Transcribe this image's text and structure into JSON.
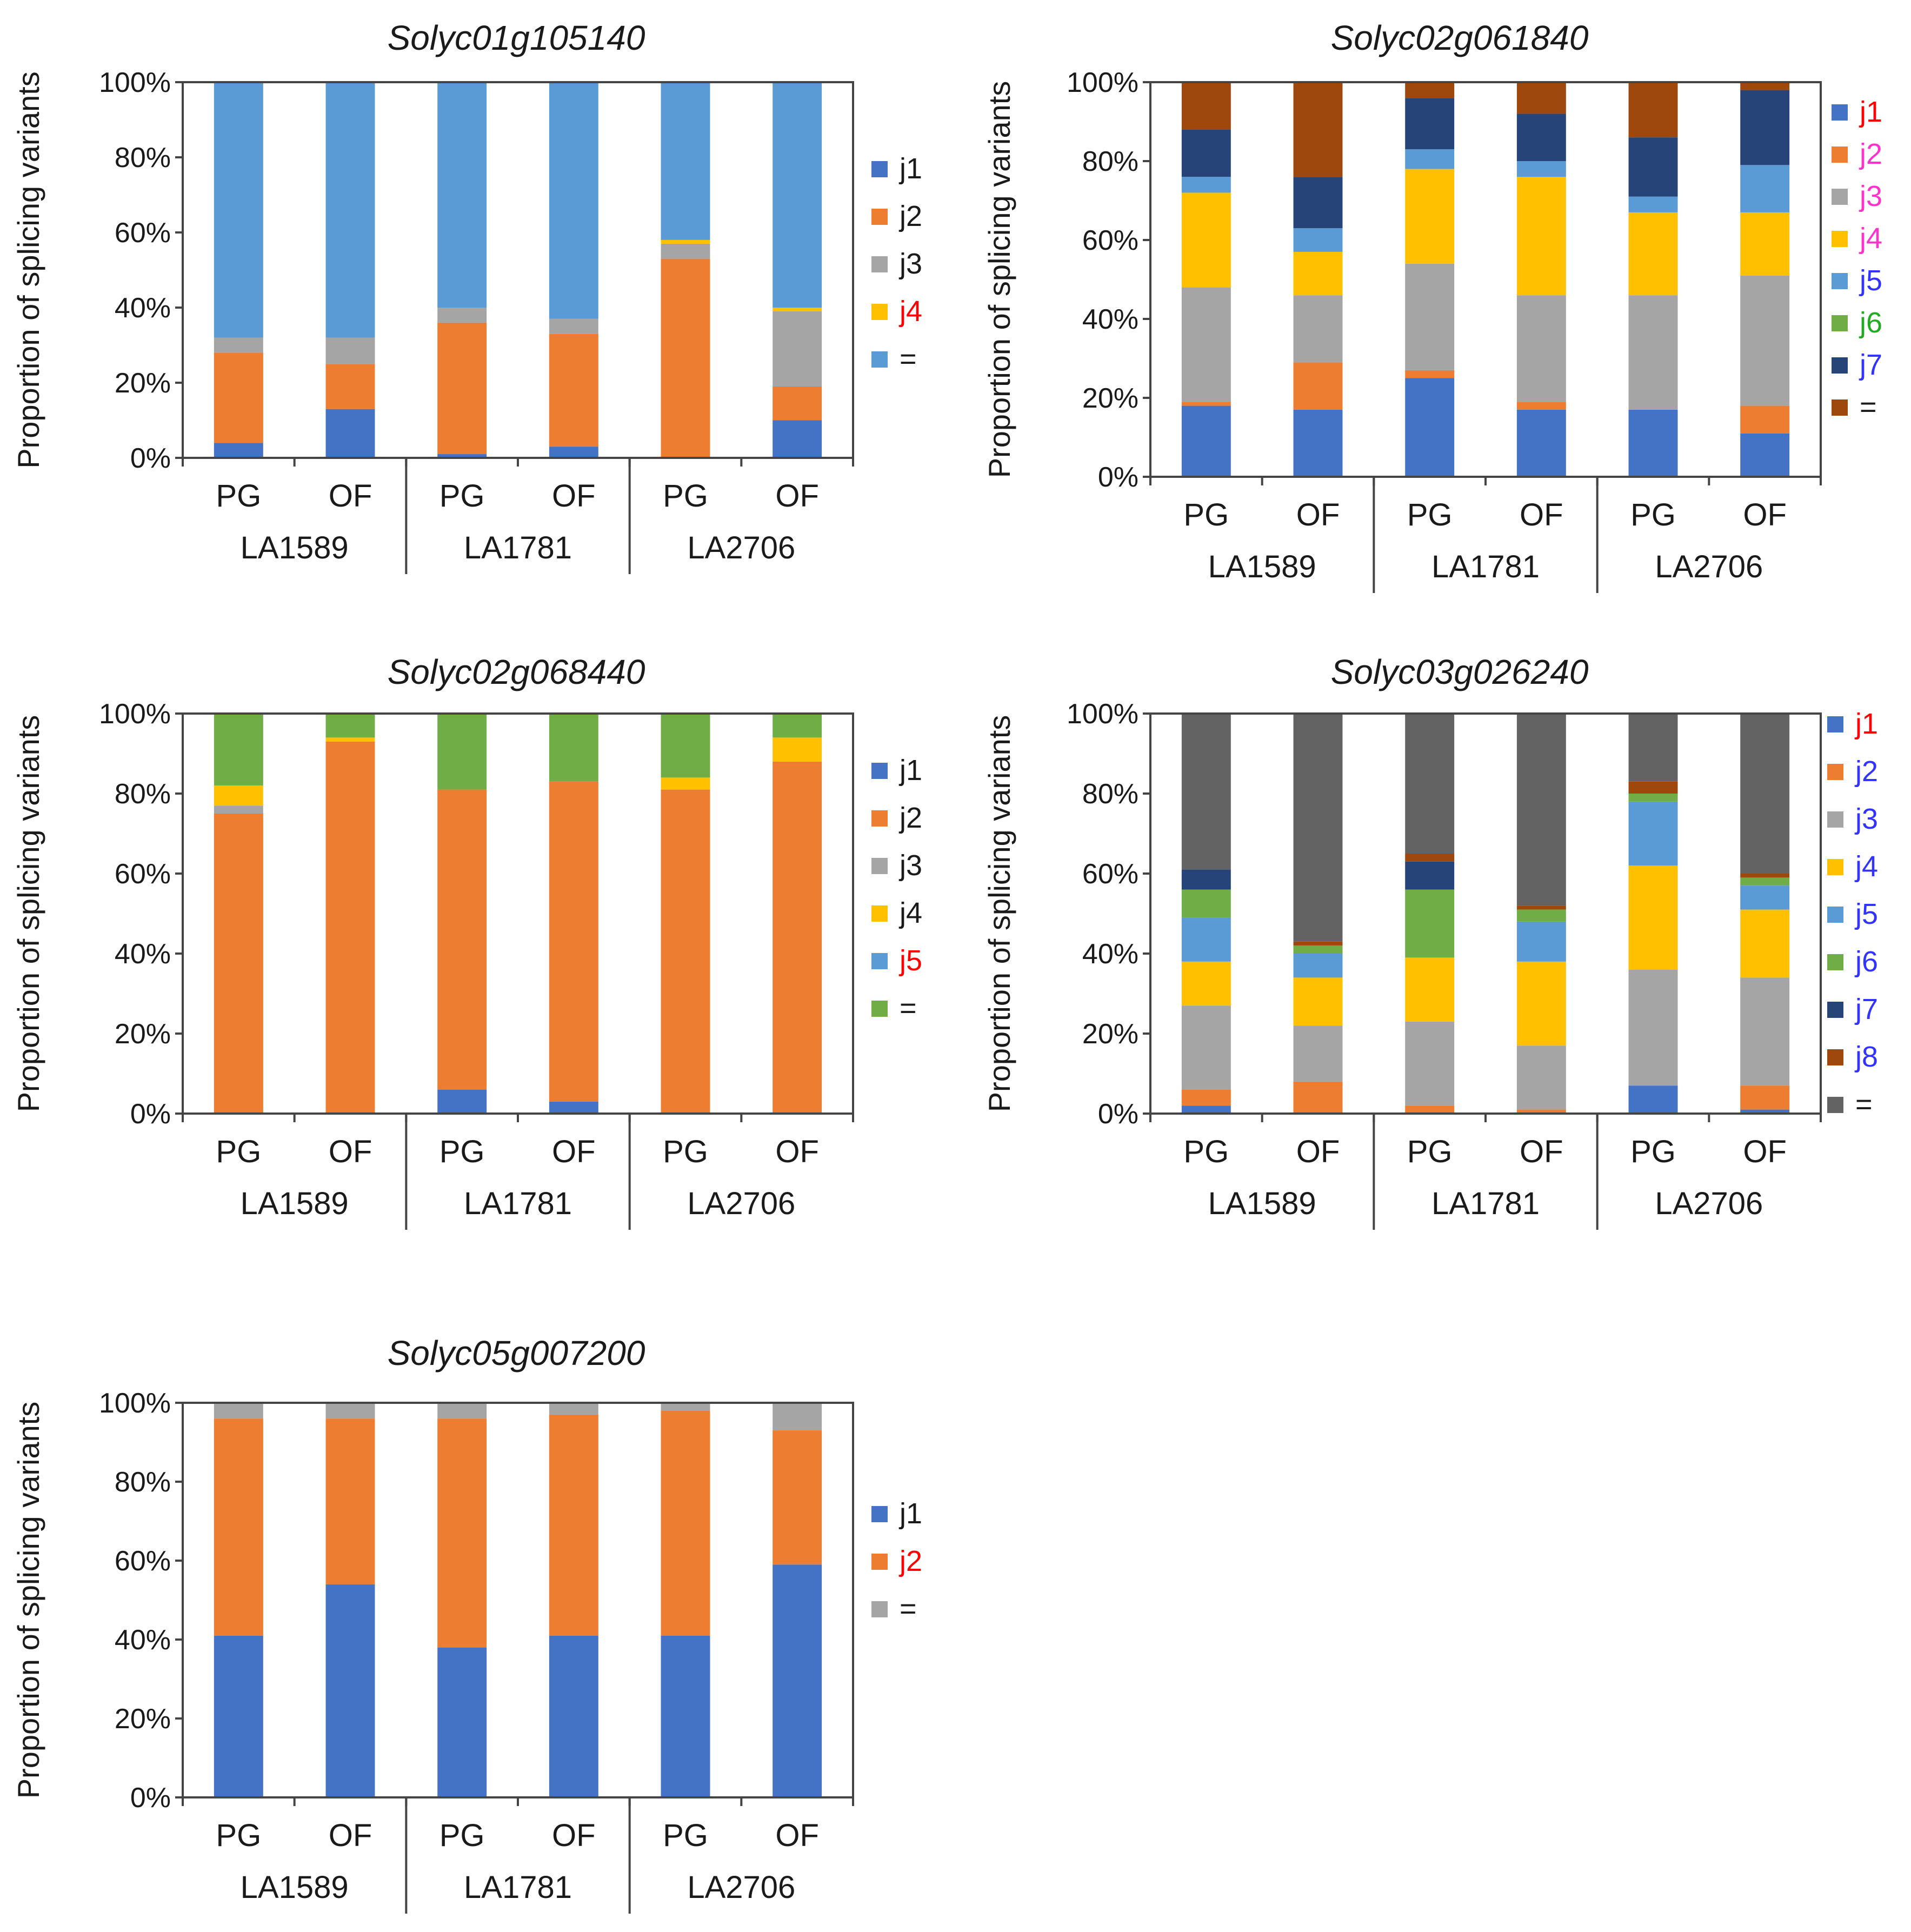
{
  "colors": {
    "j1": "#4472c4",
    "j2": "#ed7d31",
    "j3": "#a5a5a5",
    "j4": "#ffc000",
    "j5": "#5b9bd5",
    "j6": "#70ad47",
    "j7": "#264478",
    "j8": "#9e480e",
    "eq_dark": "#636363",
    "black": "#1a1a1a",
    "red": "#ff0000",
    "magenta": "#ff33cc",
    "blue": "#3333ff",
    "green": "#22aa22"
  },
  "chart_data": [
    {
      "type": "bar",
      "stacked": true,
      "title": "Solyc01g105140",
      "ylabel": "Proportion of splicing variants",
      "ylim": [
        0,
        100
      ],
      "yticks": [
        "0%",
        "20%",
        "40%",
        "60%",
        "80%",
        "100%"
      ],
      "categories": [
        "PG",
        "OF",
        "PG",
        "OF",
        "PG",
        "OF"
      ],
      "groups": [
        "LA1589",
        "LA1781",
        "LA2706"
      ],
      "series": [
        {
          "name": "j1",
          "label": "j1",
          "color": "#4472c4",
          "label_color": "#1a1a1a",
          "values": [
            4,
            13,
            1,
            3,
            0,
            10
          ]
        },
        {
          "name": "j2",
          "label": "j2",
          "color": "#ed7d31",
          "label_color": "#1a1a1a",
          "values": [
            24,
            12,
            35,
            30,
            53,
            9
          ]
        },
        {
          "name": "j3",
          "label": "j3",
          "color": "#a5a5a5",
          "label_color": "#1a1a1a",
          "values": [
            4,
            7,
            4,
            4,
            4,
            20
          ]
        },
        {
          "name": "j4",
          "label": "j4",
          "color": "#ffc000",
          "label_color": "#ff0000",
          "values": [
            0,
            0,
            0,
            0,
            1,
            1
          ]
        },
        {
          "name": "eq",
          "label": "=",
          "color": "#5b9bd5",
          "label_color": "#1a1a1a",
          "values": [
            68,
            68,
            60,
            63,
            42,
            60
          ]
        }
      ]
    },
    {
      "type": "bar",
      "stacked": true,
      "title": "Solyc02g061840",
      "ylabel": "Proportion of splicing variants",
      "ylim": [
        0,
        100
      ],
      "yticks": [
        "0%",
        "20%",
        "40%",
        "60%",
        "80%",
        "100%"
      ],
      "categories": [
        "PG",
        "OF",
        "PG",
        "OF",
        "PG",
        "OF"
      ],
      "groups": [
        "LA1589",
        "LA1781",
        "LA2706"
      ],
      "series": [
        {
          "name": "j1",
          "label": "j1",
          "color": "#4472c4",
          "label_color": "#ff0000",
          "values": [
            18,
            17,
            25,
            17,
            17,
            11
          ]
        },
        {
          "name": "j2",
          "label": "j2",
          "color": "#ed7d31",
          "label_color": "#ff33cc",
          "values": [
            1,
            12,
            2,
            2,
            0,
            7
          ]
        },
        {
          "name": "j3",
          "label": "j3",
          "color": "#a5a5a5",
          "label_color": "#ff33cc",
          "values": [
            29,
            17,
            27,
            27,
            29,
            33
          ]
        },
        {
          "name": "j4",
          "label": "j4",
          "color": "#ffc000",
          "label_color": "#ff33cc",
          "values": [
            24,
            11,
            24,
            30,
            21,
            16
          ]
        },
        {
          "name": "j5",
          "label": "j5",
          "color": "#5b9bd5",
          "label_color": "#3333ff",
          "values": [
            4,
            6,
            5,
            4,
            4,
            12
          ]
        },
        {
          "name": "j6",
          "label": "j6",
          "color": "#70ad47",
          "label_color": "#22aa22",
          "values": [
            0,
            0,
            0,
            0,
            0,
            0
          ]
        },
        {
          "name": "j7",
          "label": "j7",
          "color": "#264478",
          "label_color": "#3333ff",
          "values": [
            12,
            13,
            13,
            12,
            15,
            19
          ]
        },
        {
          "name": "eq",
          "label": "=",
          "color": "#9e480e",
          "label_color": "#1a1a1a",
          "values": [
            12,
            24,
            4,
            8,
            14,
            2
          ]
        }
      ]
    },
    {
      "type": "bar",
      "stacked": true,
      "title": "Solyc02g068440",
      "ylabel": "Proportion of splicing variants",
      "ylim": [
        0,
        100
      ],
      "yticks": [
        "0%",
        "20%",
        "40%",
        "60%",
        "80%",
        "100%"
      ],
      "categories": [
        "PG",
        "OF",
        "PG",
        "OF",
        "PG",
        "OF"
      ],
      "groups": [
        "LA1589",
        "LA1781",
        "LA2706"
      ],
      "series": [
        {
          "name": "j1",
          "label": "j1",
          "color": "#4472c4",
          "label_color": "#1a1a1a",
          "values": [
            0,
            0,
            6,
            3,
            0,
            0
          ]
        },
        {
          "name": "j2",
          "label": "j2",
          "color": "#ed7d31",
          "label_color": "#1a1a1a",
          "values": [
            75,
            93,
            75,
            80,
            81,
            88
          ]
        },
        {
          "name": "j3",
          "label": "j3",
          "color": "#a5a5a5",
          "label_color": "#1a1a1a",
          "values": [
            2,
            0,
            0,
            0,
            0,
            0
          ]
        },
        {
          "name": "j4",
          "label": "j4",
          "color": "#ffc000",
          "label_color": "#1a1a1a",
          "values": [
            5,
            1,
            0,
            0,
            3,
            6
          ]
        },
        {
          "name": "j5",
          "label": "j5",
          "color": "#5b9bd5",
          "label_color": "#ff0000",
          "values": [
            0,
            0,
            0,
            0,
            0,
            0
          ]
        },
        {
          "name": "eq",
          "label": "=",
          "color": "#70ad47",
          "label_color": "#1a1a1a",
          "values": [
            18,
            6,
            19,
            17,
            16,
            6
          ]
        }
      ]
    },
    {
      "type": "bar",
      "stacked": true,
      "title": "Solyc03g026240",
      "ylabel": "Proportion of splicing variants",
      "ylim": [
        0,
        100
      ],
      "yticks": [
        "0%",
        "20%",
        "40%",
        "60%",
        "80%",
        "100%"
      ],
      "categories": [
        "PG",
        "OF",
        "PG",
        "OF",
        "PG",
        "OF"
      ],
      "groups": [
        "LA1589",
        "LA1781",
        "LA2706"
      ],
      "series": [
        {
          "name": "j1",
          "label": "j1",
          "color": "#4472c4",
          "label_color": "#ff0000",
          "values": [
            2,
            0,
            0,
            0,
            7,
            1
          ]
        },
        {
          "name": "j2",
          "label": "j2",
          "color": "#ed7d31",
          "label_color": "#3333ff",
          "values": [
            4,
            8,
            2,
            1,
            0,
            6
          ]
        },
        {
          "name": "j3",
          "label": "j3",
          "color": "#a5a5a5",
          "label_color": "#3333ff",
          "values": [
            21,
            14,
            21,
            16,
            29,
            27
          ]
        },
        {
          "name": "j4",
          "label": "j4",
          "color": "#ffc000",
          "label_color": "#3333ff",
          "values": [
            11,
            12,
            16,
            21,
            26,
            17
          ]
        },
        {
          "name": "j5",
          "label": "j5",
          "color": "#5b9bd5",
          "label_color": "#3333ff",
          "values": [
            11,
            6,
            0,
            10,
            16,
            6
          ]
        },
        {
          "name": "j6",
          "label": "j6",
          "color": "#70ad47",
          "label_color": "#3333ff",
          "values": [
            7,
            2,
            17,
            3,
            2,
            2
          ]
        },
        {
          "name": "j7",
          "label": "j7",
          "color": "#264478",
          "label_color": "#3333ff",
          "values": [
            5,
            0,
            7,
            0,
            0,
            0
          ]
        },
        {
          "name": "j8",
          "label": "j8",
          "color": "#9e480e",
          "label_color": "#3333ff",
          "values": [
            0,
            1,
            2,
            1,
            3,
            1
          ]
        },
        {
          "name": "eq",
          "label": "=",
          "color": "#636363",
          "label_color": "#1a1a1a",
          "values": [
            39,
            57,
            35,
            48,
            17,
            40
          ]
        }
      ]
    },
    {
      "type": "bar",
      "stacked": true,
      "title": "Solyc05g007200",
      "ylabel": "Proportion of splicing variants",
      "ylim": [
        0,
        100
      ],
      "yticks": [
        "0%",
        "20%",
        "40%",
        "60%",
        "80%",
        "100%"
      ],
      "categories": [
        "PG",
        "OF",
        "PG",
        "OF",
        "PG",
        "OF"
      ],
      "groups": [
        "LA1589",
        "LA1781",
        "LA2706"
      ],
      "series": [
        {
          "name": "j1",
          "label": "j1",
          "color": "#4472c4",
          "label_color": "#1a1a1a",
          "values": [
            41,
            54,
            38,
            41,
            41,
            59
          ]
        },
        {
          "name": "j2",
          "label": "j2",
          "color": "#ed7d31",
          "label_color": "#ff0000",
          "values": [
            55,
            42,
            58,
            56,
            57,
            34
          ]
        },
        {
          "name": "eq",
          "label": "=",
          "color": "#a5a5a5",
          "label_color": "#1a1a1a",
          "values": [
            4,
            4,
            4,
            3,
            2,
            7
          ]
        }
      ]
    }
  ]
}
